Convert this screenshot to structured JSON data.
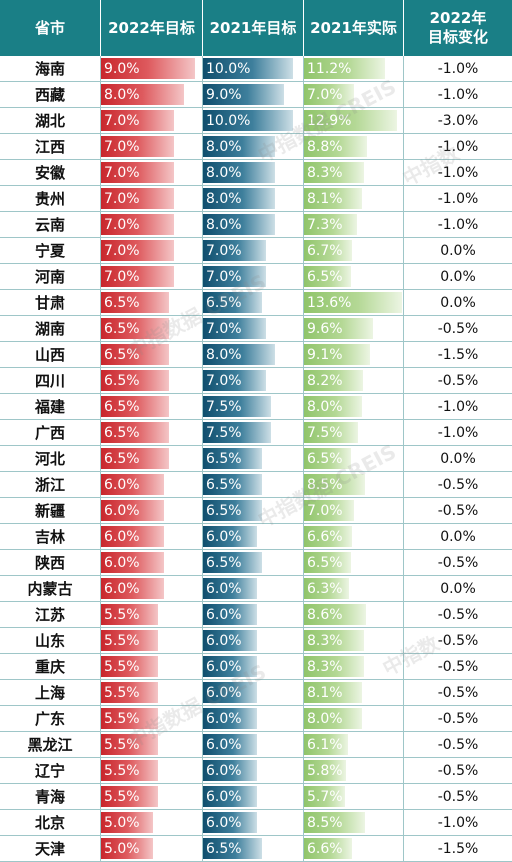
{
  "headers": {
    "province": "省市",
    "target_2022": "2022年目标",
    "target_2021": "2021年目标",
    "actual_2021": "2021年实际",
    "change_line1": "2022年",
    "change_line2": "目标变化"
  },
  "colors": {
    "header_bg": "#1a7f86",
    "target_2022_bar": "#c8262c",
    "target_2021_bar": "#0f4e6d",
    "actual_2021_bar": "#8fc46a"
  },
  "chart_data": {
    "type": "table",
    "columns": [
      "省市",
      "2022年目标",
      "2021年目标",
      "2021年实际",
      "2022年目标变化"
    ],
    "rows": [
      {
        "province": "海南",
        "t2022": "9.0%",
        "t2021": "10.0%",
        "a2021": "11.2%",
        "change": "-1.0%"
      },
      {
        "province": "西藏",
        "t2022": "8.0%",
        "t2021": "9.0%",
        "a2021": "7.0%",
        "change": "-1.0%"
      },
      {
        "province": "湖北",
        "t2022": "7.0%",
        "t2021": "10.0%",
        "a2021": "12.9%",
        "change": "-3.0%"
      },
      {
        "province": "江西",
        "t2022": "7.0%",
        "t2021": "8.0%",
        "a2021": "8.8%",
        "change": "-1.0%"
      },
      {
        "province": "安徽",
        "t2022": "7.0%",
        "t2021": "8.0%",
        "a2021": "8.3%",
        "change": "-1.0%"
      },
      {
        "province": "贵州",
        "t2022": "7.0%",
        "t2021": "8.0%",
        "a2021": "8.1%",
        "change": "-1.0%"
      },
      {
        "province": "云南",
        "t2022": "7.0%",
        "t2021": "8.0%",
        "a2021": "7.3%",
        "change": "-1.0%"
      },
      {
        "province": "宁夏",
        "t2022": "7.0%",
        "t2021": "7.0%",
        "a2021": "6.7%",
        "change": "0.0%"
      },
      {
        "province": "河南",
        "t2022": "7.0%",
        "t2021": "7.0%",
        "a2021": "6.5%",
        "change": "0.0%"
      },
      {
        "province": "甘肃",
        "t2022": "6.5%",
        "t2021": "6.5%",
        "a2021": "13.6%",
        "change": "0.0%"
      },
      {
        "province": "湖南",
        "t2022": "6.5%",
        "t2021": "7.0%",
        "a2021": "9.6%",
        "change": "-0.5%"
      },
      {
        "province": "山西",
        "t2022": "6.5%",
        "t2021": "8.0%",
        "a2021": "9.1%",
        "change": "-1.5%"
      },
      {
        "province": "四川",
        "t2022": "6.5%",
        "t2021": "7.0%",
        "a2021": "8.2%",
        "change": "-0.5%"
      },
      {
        "province": "福建",
        "t2022": "6.5%",
        "t2021": "7.5%",
        "a2021": "8.0%",
        "change": "-1.0%"
      },
      {
        "province": "广西",
        "t2022": "6.5%",
        "t2021": "7.5%",
        "a2021": "7.5%",
        "change": "-1.0%"
      },
      {
        "province": "河北",
        "t2022": "6.5%",
        "t2021": "6.5%",
        "a2021": "6.5%",
        "change": "0.0%"
      },
      {
        "province": "浙江",
        "t2022": "6.0%",
        "t2021": "6.5%",
        "a2021": "8.5%",
        "change": "-0.5%"
      },
      {
        "province": "新疆",
        "t2022": "6.0%",
        "t2021": "6.5%",
        "a2021": "7.0%",
        "change": "-0.5%"
      },
      {
        "province": "吉林",
        "t2022": "6.0%",
        "t2021": "6.0%",
        "a2021": "6.6%",
        "change": "0.0%"
      },
      {
        "province": "陕西",
        "t2022": "6.0%",
        "t2021": "6.5%",
        "a2021": "6.5%",
        "change": "-0.5%"
      },
      {
        "province": "内蒙古",
        "t2022": "6.0%",
        "t2021": "6.0%",
        "a2021": "6.3%",
        "change": "0.0%"
      },
      {
        "province": "江苏",
        "t2022": "5.5%",
        "t2021": "6.0%",
        "a2021": "8.6%",
        "change": "-0.5%"
      },
      {
        "province": "山东",
        "t2022": "5.5%",
        "t2021": "6.0%",
        "a2021": "8.3%",
        "change": "-0.5%"
      },
      {
        "province": "重庆",
        "t2022": "5.5%",
        "t2021": "6.0%",
        "a2021": "8.3%",
        "change": "-0.5%"
      },
      {
        "province": "上海",
        "t2022": "5.5%",
        "t2021": "6.0%",
        "a2021": "8.1%",
        "change": "-0.5%"
      },
      {
        "province": "广东",
        "t2022": "5.5%",
        "t2021": "6.0%",
        "a2021": "8.0%",
        "change": "-0.5%"
      },
      {
        "province": "黑龙江",
        "t2022": "5.5%",
        "t2021": "6.0%",
        "a2021": "6.1%",
        "change": "-0.5%"
      },
      {
        "province": "辽宁",
        "t2022": "5.5%",
        "t2021": "6.0%",
        "a2021": "5.8%",
        "change": "-0.5%"
      },
      {
        "province": "青海",
        "t2022": "5.5%",
        "t2021": "6.0%",
        "a2021": "5.7%",
        "change": "-0.5%"
      },
      {
        "province": "北京",
        "t2022": "5.0%",
        "t2021": "6.0%",
        "a2021": "8.5%",
        "change": "-1.0%"
      },
      {
        "province": "天津",
        "t2022": "5.0%",
        "t2021": "6.5%",
        "a2021": "6.6%",
        "change": "-1.5%"
      }
    ]
  }
}
